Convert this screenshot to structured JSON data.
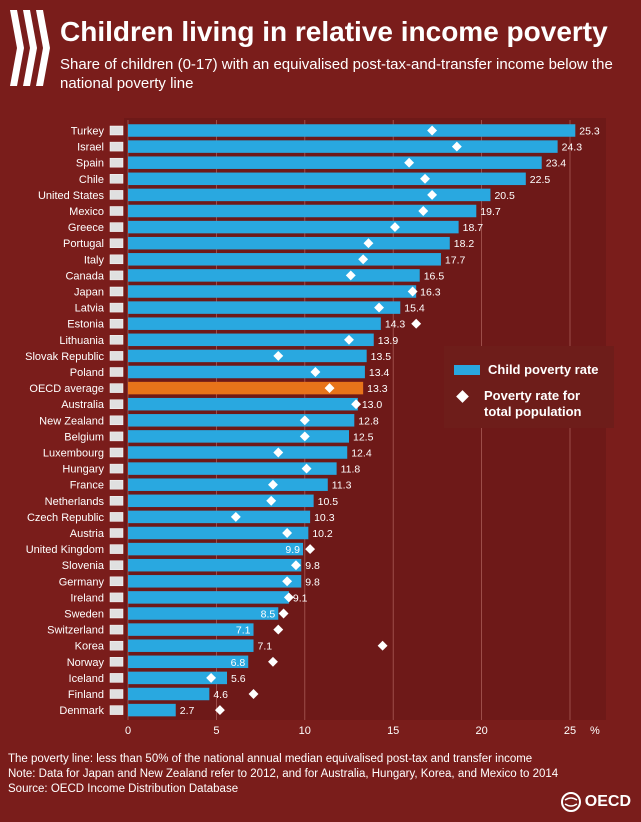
{
  "header": {
    "title": "Children living in relative income poverty",
    "subtitle": "Share of children (0-17) with an equivalised post-tax-and-transfer income below the national poverty line"
  },
  "legend": {
    "bar_label": "Child poverty rate",
    "diamond_label": "Poverty rate for total population"
  },
  "footer": {
    "line1": "The poverty line: less than 50% of the national annual median equivalised post-tax and transfer income",
    "line2": "Note: Data for Japan and New Zealand refer to 2012, and for Australia, Hungary, Korea, and Mexico to 2014",
    "line3": "Source: OECD Income Distribution Database",
    "brand": "OECD"
  },
  "colors": {
    "background": "#7a1d1b",
    "bar": "#29a8e0",
    "highlight_bar": "#e8731a",
    "diamond": "#ffffff"
  },
  "chart_data": {
    "type": "bar",
    "orientation": "horizontal",
    "title": "Children living in relative income poverty",
    "subtitle": "Share of children (0-17) with an equivalised post-tax-and-transfer income below the national poverty line",
    "x_unit": "%",
    "xlim": [
      0,
      25
    ],
    "x_ticks": [
      0,
      5,
      10,
      15,
      20,
      25
    ],
    "grid": true,
    "legend_position": "right-middle",
    "highlight": "OECD average",
    "categories": [
      "Turkey",
      "Israel",
      "Spain",
      "Chile",
      "United States",
      "Mexico",
      "Greece",
      "Portugal",
      "Italy",
      "Canada",
      "Japan",
      "Latvia",
      "Estonia",
      "Lithuania",
      "Slovak Republic",
      "Poland",
      "OECD average",
      "Australia",
      "New Zealand",
      "Belgium",
      "Luxembourg",
      "Hungary",
      "France",
      "Netherlands",
      "Czech Republic",
      "Austria",
      "United Kingdom",
      "Slovenia",
      "Germany",
      "Ireland",
      "Sweden",
      "Switzerland",
      "Korea",
      "Norway",
      "Iceland",
      "Finland",
      "Denmark"
    ],
    "series": [
      {
        "name": "Child poverty rate",
        "marker": "bar",
        "values": [
          25.3,
          24.3,
          23.4,
          22.5,
          20.5,
          19.7,
          18.7,
          18.2,
          17.7,
          16.5,
          16.3,
          15.4,
          14.3,
          13.9,
          13.5,
          13.4,
          13.3,
          13.0,
          12.8,
          12.5,
          12.4,
          11.8,
          11.3,
          10.5,
          10.3,
          10.2,
          9.9,
          9.8,
          9.8,
          9.1,
          8.5,
          7.1,
          7.1,
          6.8,
          5.6,
          4.6,
          2.7
        ],
        "value_labels": [
          "25.3",
          "24.3",
          "23.4",
          "22.5",
          "20.5",
          "19.7",
          "18.7",
          "18.2",
          "17.7",
          "16.5",
          "16.3",
          "15.4",
          "14.3",
          "13.9",
          "13.5",
          "13.4",
          "13.3",
          "13.0",
          "12.8",
          "12.5",
          "12.4",
          "11.8",
          "11.3",
          "10.5",
          "10.3",
          "10.2",
          "9.9",
          "9.8",
          "9.8",
          "9.1",
          "8.5",
          "7.1",
          "7.1",
          "6.8",
          "5.6",
          "4.6",
          "2.7"
        ]
      },
      {
        "name": "Poverty rate for total population",
        "marker": "diamond",
        "values": [
          17.2,
          18.6,
          15.9,
          16.8,
          17.2,
          16.7,
          15.1,
          13.6,
          13.3,
          12.6,
          16.1,
          14.2,
          16.3,
          12.5,
          8.5,
          10.6,
          11.4,
          12.9,
          10.0,
          10.0,
          8.5,
          10.1,
          8.2,
          8.1,
          6.1,
          9.0,
          10.3,
          9.5,
          9.0,
          9.1,
          8.8,
          8.5,
          14.4,
          8.2,
          4.7,
          7.1,
          5.2
        ]
      }
    ]
  }
}
